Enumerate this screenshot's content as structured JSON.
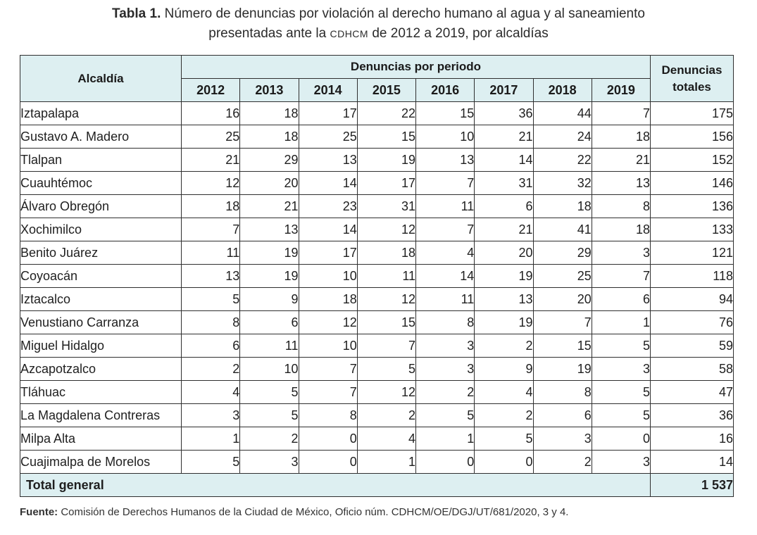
{
  "caption": {
    "label": "Tabla 1.",
    "text_before": " Número de denuncias por violación al derecho humano al agua y al saneamiento",
    "text_line2_a": "presentadas ante la ",
    "acronym": "CDHCM",
    "text_line2_b": " de 2012 a 2019, por alcaldías"
  },
  "headers": {
    "alcaldia": "Alcaldía",
    "por_periodo": "Denuncias por periodo",
    "totales": "Denuncias totales",
    "years": [
      "2012",
      "2013",
      "2014",
      "2015",
      "2016",
      "2017",
      "2018",
      "2019"
    ]
  },
  "rows": [
    {
      "name": "Iztapalapa",
      "values": [
        "16",
        "18",
        "17",
        "22",
        "15",
        "36",
        "44",
        "7"
      ],
      "total": "175"
    },
    {
      "name": "Gustavo A. Madero",
      "values": [
        "25",
        "18",
        "25",
        "15",
        "10",
        "21",
        "24",
        "18"
      ],
      "total": "156"
    },
    {
      "name": "Tlalpan",
      "values": [
        "21",
        "29",
        "13",
        "19",
        "13",
        "14",
        "22",
        "21"
      ],
      "total": "152"
    },
    {
      "name": "Cuauhtémoc",
      "values": [
        "12",
        "20",
        "14",
        "17",
        "7",
        "31",
        "32",
        "13"
      ],
      "total": "146"
    },
    {
      "name": "Álvaro Obregón",
      "values": [
        "18",
        "21",
        "23",
        "31",
        "11",
        "6",
        "18",
        "8"
      ],
      "total": "136"
    },
    {
      "name": "Xochimilco",
      "values": [
        "7",
        "13",
        "14",
        "12",
        "7",
        "21",
        "41",
        "18"
      ],
      "total": "133"
    },
    {
      "name": "Benito Juárez",
      "values": [
        "11",
        "19",
        "17",
        "18",
        "4",
        "20",
        "29",
        "3"
      ],
      "total": "121"
    },
    {
      "name": "Coyoacán",
      "values": [
        "13",
        "19",
        "10",
        "11",
        "14",
        "19",
        "25",
        "7"
      ],
      "total": "118"
    },
    {
      "name": "Iztacalco",
      "values": [
        "5",
        "9",
        "18",
        "12",
        "11",
        "13",
        "20",
        "6"
      ],
      "total": "94"
    },
    {
      "name": "Venustiano Carranza",
      "values": [
        "8",
        "6",
        "12",
        "15",
        "8",
        "19",
        "7",
        "1"
      ],
      "total": "76"
    },
    {
      "name": "Miguel Hidalgo",
      "values": [
        "6",
        "11",
        "10",
        "7",
        "3",
        "2",
        "15",
        "5"
      ],
      "total": "59"
    },
    {
      "name": "Azcapotzalco",
      "values": [
        "2",
        "10",
        "7",
        "5",
        "3",
        "9",
        "19",
        "3"
      ],
      "total": "58"
    },
    {
      "name": "Tláhuac",
      "values": [
        "4",
        "5",
        "7",
        "12",
        "2",
        "4",
        "8",
        "5"
      ],
      "total": "47"
    },
    {
      "name": "La Magdalena Contreras",
      "values": [
        "3",
        "5",
        "8",
        "2",
        "5",
        "2",
        "6",
        "5"
      ],
      "total": "36"
    },
    {
      "name": "Milpa Alta",
      "values": [
        "1",
        "2",
        "0",
        "4",
        "1",
        "5",
        "3",
        "0"
      ],
      "total": "16"
    },
    {
      "name": "Cuajimalpa de Morelos",
      "values": [
        "5",
        "3",
        "0",
        "1",
        "0",
        "0",
        "2",
        "3"
      ],
      "total": "14"
    }
  ],
  "total_row": {
    "label": "Total general",
    "total": "1 537"
  },
  "source": {
    "label": "Fuente:",
    "text": " Comisión de Derechos Humanos de la Ciudad de México, Oficio núm. CDHCM/OE/DGJ/UT/681/2020, 3 y 4."
  }
}
